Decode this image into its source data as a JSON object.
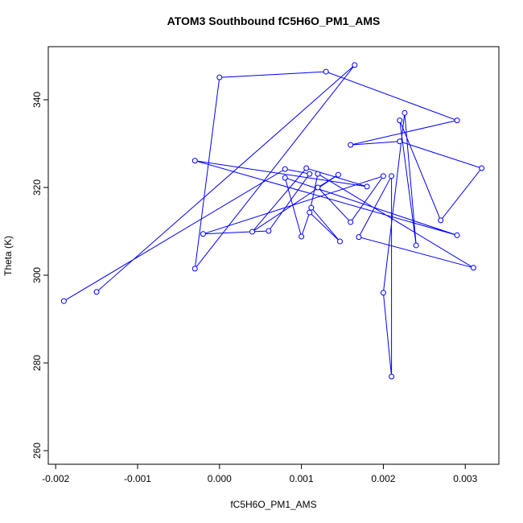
{
  "chart_data": {
    "type": "scatter-line",
    "title": "ATOM3 Southbound fC5H6O_PM1_AMS",
    "x_label": "fC5H6O_PM1_AMS",
    "y_label": "Theta (K)",
    "color": "#0000ff",
    "xlim": [
      -0.00209,
      0.00341
    ],
    "ylim": [
      256.9,
      352.1
    ],
    "xticks": [
      {
        "value": -0.002,
        "label": "-0.002"
      },
      {
        "value": -0.001,
        "label": "-0.001"
      },
      {
        "value": 0,
        "label": "0.000"
      },
      {
        "value": 0.001,
        "label": "0.001"
      },
      {
        "value": 0.002,
        "label": "0.002"
      },
      {
        "value": 0.003,
        "label": "0.003"
      }
    ],
    "yticks": [
      260,
      280,
      300,
      320,
      340
    ],
    "x": [
      -0.0015,
      0.00165,
      -0.0003,
      0,
      0.0013,
      0.0029,
      0.0016,
      0.0022,
      0.0032,
      0.0027,
      0.0022,
      0.0024,
      0.00226,
      0.002,
      0.0021,
      0.0021,
      0.0017,
      0.0031,
      0.0012,
      0.0011,
      0.00147,
      0.00112,
      0.001,
      0.0008,
      0.0029,
      -0.0003,
      0.0018,
      0.00106,
      0.0004,
      0.00145,
      0.0012,
      0.0016,
      0.002,
      -0.0002,
      0.0006,
      0.0011,
      0.0008,
      -0.0019
    ],
    "values": [
      296.2,
      347.9,
      301.5,
      345.1,
      346.4,
      335.3,
      329.7,
      330.5,
      324.4,
      312.5,
      335.3,
      306.8,
      337,
      296,
      276.9,
      322.6,
      308.7,
      301.7,
      323.1,
      314.3,
      307.7,
      315.4,
      308.8,
      322.2,
      309.1,
      326.1,
      320.2,
      324.4,
      309.9,
      322.9,
      320,
      312.1,
      322.6,
      309.4,
      310.1,
      323.1,
      324.2,
      294.1
    ]
  }
}
